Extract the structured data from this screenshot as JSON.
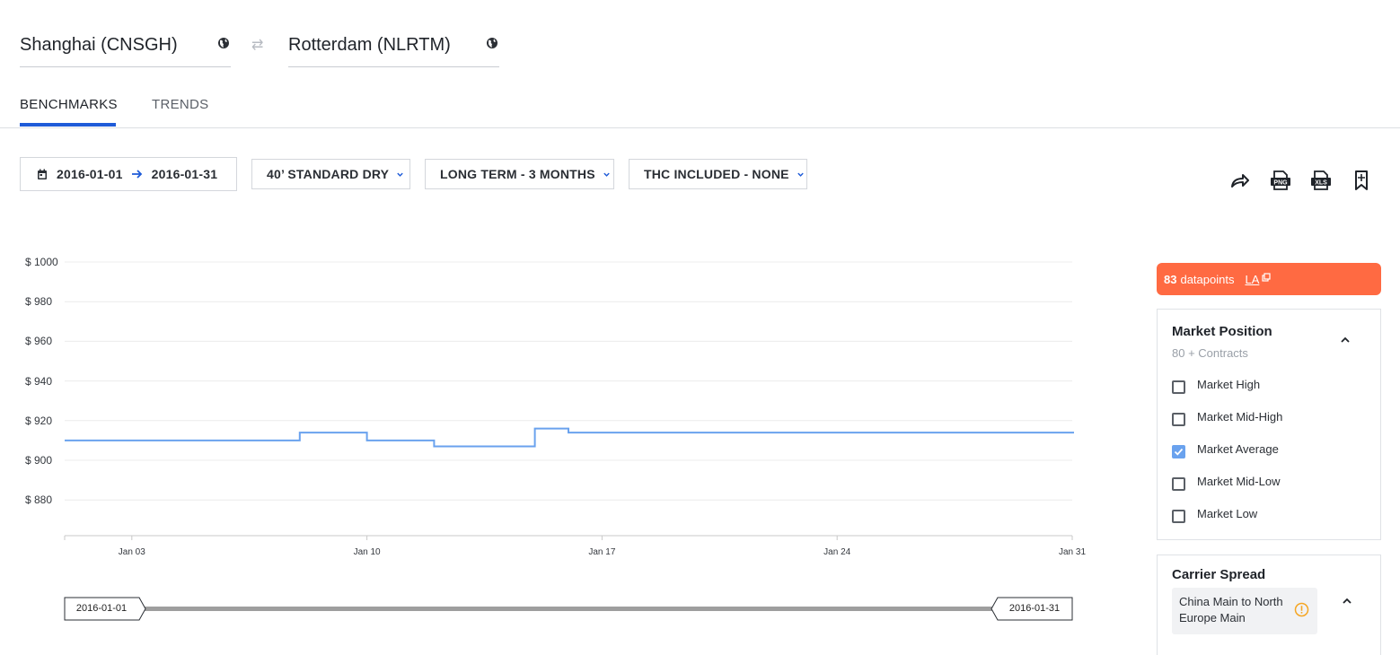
{
  "route": {
    "origin": "Shanghai (CNSGH)",
    "destination": "Rotterdam (NLRTM)"
  },
  "tabs": [
    {
      "label": "BENCHMARKS",
      "active": true
    },
    {
      "label": "TRENDS",
      "active": false
    }
  ],
  "filters": {
    "date_from": "2016-01-01",
    "date_to": "2016-01-31",
    "container": "40’ STANDARD DRY",
    "contract_term": "LONG TERM - 3 MONTHS",
    "thc": "THC INCLUDED - NONE"
  },
  "toolbar": {
    "icons": [
      "share-icon",
      "png-export-icon",
      "xls-export-icon",
      "bookmark-icon"
    ],
    "png_text": "PNG",
    "xls_text": "XLS"
  },
  "chart_data": {
    "type": "line",
    "step": true,
    "title": "",
    "xlabel": "",
    "ylabel": "",
    "x_ticks": [
      "Jan 03",
      "Jan 10",
      "Jan 17",
      "Jan 24",
      "Jan 31"
    ],
    "x_tick_days": [
      3,
      10,
      17,
      24,
      31
    ],
    "xlim_days": [
      1,
      31
    ],
    "y_ticks": [
      "$ 1000",
      "$ 980",
      "$ 960",
      "$ 940",
      "$ 920",
      "$ 900",
      "$ 880"
    ],
    "y_tick_values": [
      1000,
      980,
      960,
      940,
      920,
      900,
      880
    ],
    "ylim": [
      862,
      1000
    ],
    "grid": true,
    "color": "#6aa2ee",
    "series": [
      {
        "name": "Market Average",
        "x_days": [
          1,
          8,
          10,
          12,
          15,
          16,
          31
        ],
        "values": [
          910,
          914,
          910,
          907,
          916,
          914,
          914
        ]
      }
    ]
  },
  "range_slider": {
    "start": "2016-01-01",
    "end": "2016-01-31"
  },
  "sidebar": {
    "datapoints_count": "83",
    "datapoints_label": "datapoints",
    "datapoints_link": "LA",
    "market_position": {
      "title": "Market Position",
      "subtitle": "80 + Contracts",
      "options": [
        {
          "label": "Market High",
          "checked": false
        },
        {
          "label": "Market Mid-High",
          "checked": false
        },
        {
          "label": "Market Average",
          "checked": true
        },
        {
          "label": "Market Mid-Low",
          "checked": false
        },
        {
          "label": "Market Low",
          "checked": false
        }
      ]
    },
    "carrier_spread": {
      "title": "Carrier Spread",
      "region": "China Main to North Europe Main"
    }
  },
  "colors": {
    "accent": "#1e5bd8",
    "badge": "#ff6a42",
    "series": "#6aa2ee",
    "warning": "#f5a623"
  }
}
